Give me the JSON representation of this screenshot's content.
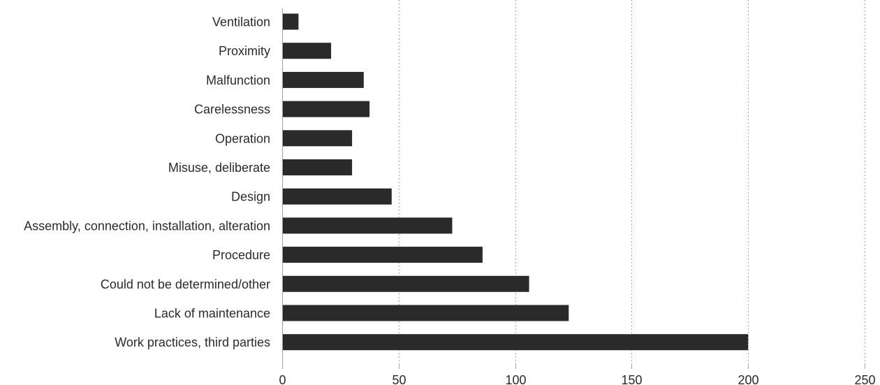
{
  "chart_data": {
    "type": "bar",
    "orientation": "horizontal",
    "categories": [
      "Ventilation",
      "Proximity",
      "Malfunction",
      "Carelessness",
      "Operation",
      "Misuse, deliberate",
      "Design",
      "Assembly, connection, installation, alteration",
      "Procedure",
      "Could not be determined/other",
      "Lack of maintenance",
      "Work practices, third parties"
    ],
    "values": [
      7,
      21,
      35,
      37.5,
      30,
      30,
      47,
      73,
      86,
      106,
      123,
      200
    ],
    "xlim": [
      0,
      250
    ],
    "xticks": [
      0,
      50,
      100,
      150,
      200,
      250
    ],
    "grid": "vertical dotted",
    "colors": {
      "bar": "#2a2a2a",
      "grid": "#a8a8a8",
      "text": "#2b2b2b"
    }
  }
}
